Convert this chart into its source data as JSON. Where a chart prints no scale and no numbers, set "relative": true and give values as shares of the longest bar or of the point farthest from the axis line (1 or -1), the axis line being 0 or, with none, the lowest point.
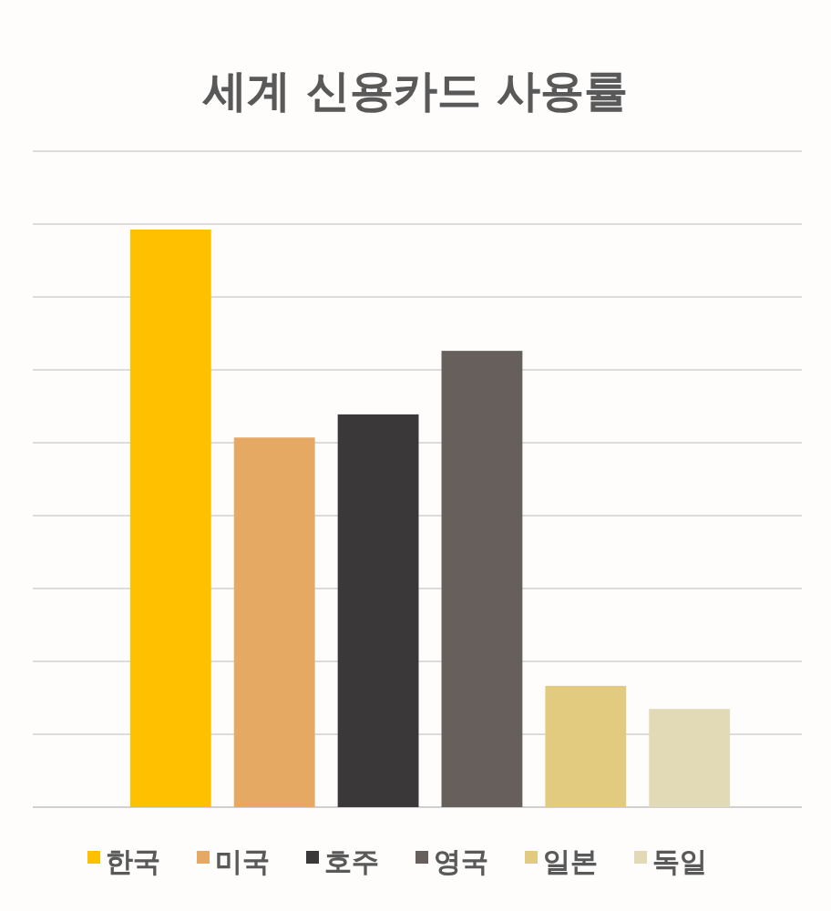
{
  "chart_data": {
    "type": "bar",
    "title": "세계 신용카드 사용률",
    "relative": true,
    "categories": [
      null
    ],
    "series": [
      {
        "name": "한국",
        "color": "#ffc000",
        "values": [
          1
        ]
      },
      {
        "name": "미국",
        "color": "#e6a964",
        "values": [
          0.64
        ]
      },
      {
        "name": "호주",
        "color": "#3a3838",
        "values": [
          0.68
        ]
      },
      {
        "name": "영국",
        "color": "#675f5c",
        "values": [
          0.79
        ]
      },
      {
        "name": "일본",
        "color": "#e2cb7e",
        "values": [
          0.21
        ]
      },
      {
        "name": "독일",
        "color": "#e2d9b6",
        "values": [
          0.17
        ]
      }
    ],
    "grid": true,
    "legend": "bottom"
  }
}
